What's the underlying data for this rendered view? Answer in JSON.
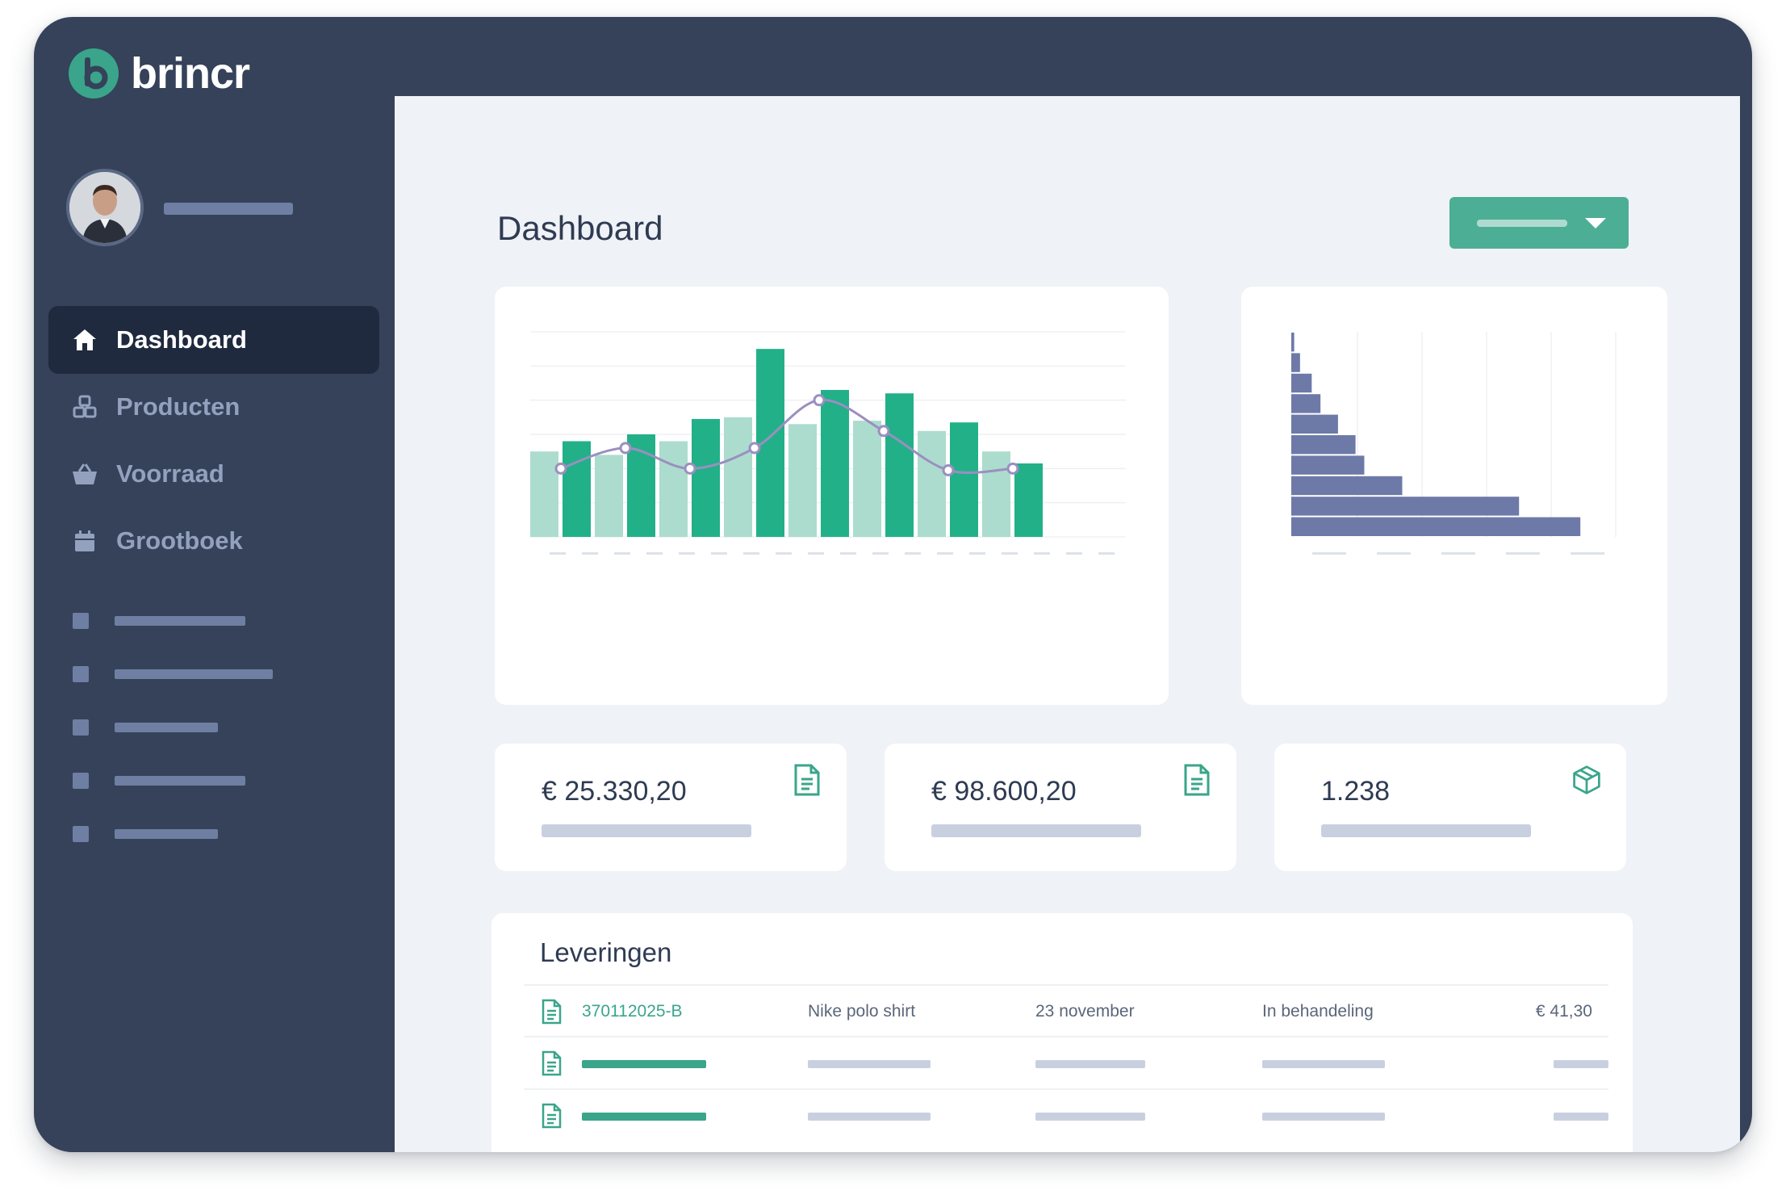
{
  "brand": {
    "name": "brincr",
    "accent": "#3aa58b"
  },
  "sidebar": {
    "items": [
      {
        "label": "Dashboard",
        "icon": "home-icon",
        "active": true
      },
      {
        "label": "Producten",
        "icon": "boxes-icon",
        "active": false
      },
      {
        "label": "Voorraad",
        "icon": "basket-icon",
        "active": false
      },
      {
        "label": "Grootboek",
        "icon": "calendar-icon",
        "active": false
      }
    ]
  },
  "main": {
    "title": "Dashboard"
  },
  "kpis": [
    {
      "value": "€ 25.330,20",
      "icon": "document-icon"
    },
    {
      "value": "€ 98.600,20",
      "icon": "document-icon"
    },
    {
      "value": "1.238",
      "icon": "package-icon"
    }
  ],
  "deliveries": {
    "title": "Leveringen",
    "rows": [
      {
        "id": "370112025-B",
        "product": "Nike polo shirt",
        "date": "23 november",
        "status": "In behandeling",
        "amount": "€ 41,30"
      }
    ]
  },
  "chart_data": [
    {
      "type": "bar",
      "title": "",
      "series": [
        {
          "values": [
            50,
            56,
            48,
            60,
            56,
            69,
            70,
            110,
            66,
            86,
            68,
            84,
            62,
            67,
            50,
            43
          ]
        }
      ],
      "overlay_line": [
        40,
        52,
        40,
        52,
        80,
        62,
        39,
        40
      ],
      "colors": {
        "light": "#acdccd",
        "dark": "#22b089",
        "line": "#9b8fc0"
      },
      "ylim": [
        0,
        120
      ],
      "grid": true
    },
    {
      "type": "bar",
      "orientation": "horizontal",
      "title": "",
      "values": [
        1,
        3,
        7,
        10,
        16,
        22,
        25,
        38,
        78,
        99
      ],
      "colors": {
        "bar": "#6d7aa8"
      },
      "xlim": [
        0,
        110
      ],
      "grid": true
    }
  ]
}
